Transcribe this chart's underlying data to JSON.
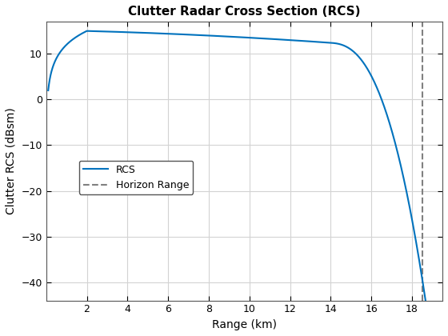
{
  "title": "Clutter Radar Cross Section (RCS)",
  "xlabel": "Range (km)",
  "ylabel": "Clutter RCS (dBsm)",
  "line_color": "#0072BD",
  "line_width": 1.5,
  "horizon_color": "#808080",
  "horizon_x": 18.5,
  "xlim": [
    0,
    19.5
  ],
  "ylim": [
    -44,
    17
  ],
  "xticks": [
    2,
    4,
    6,
    8,
    10,
    12,
    14,
    16,
    18
  ],
  "yticks": [
    -40,
    -30,
    -20,
    -10,
    0,
    10
  ],
  "legend_labels": [
    "RCS",
    "Horizon Range"
  ],
  "background_color": "#ffffff",
  "grid_color": "#d3d3d3",
  "title_fontsize": 11,
  "label_fontsize": 10,
  "legend_fontsize": 9
}
